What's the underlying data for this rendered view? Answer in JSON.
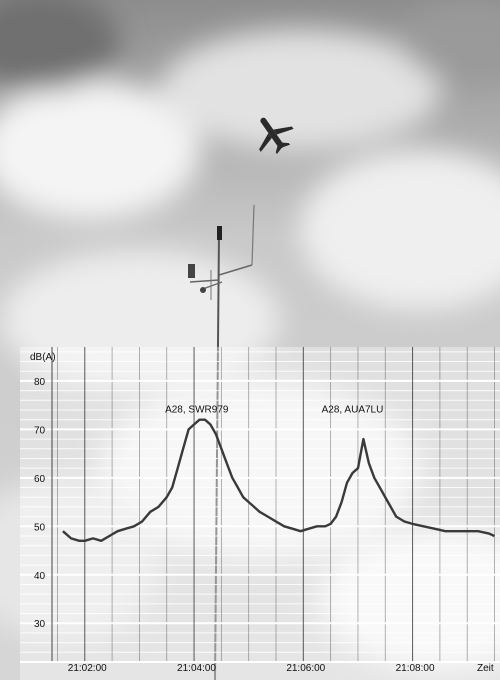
{
  "chart_data": {
    "type": "line",
    "title": "",
    "ylabel": "dB(A)",
    "xlabel": "Zeit",
    "ylim": [
      22,
      87
    ],
    "y_ticks": [
      30,
      40,
      50,
      60,
      70,
      80
    ],
    "x_unit": "minutes",
    "xlim": [
      1261.4,
      1269.6
    ],
    "x_ticks": [
      {
        "value": 1262,
        "label": "21:02:00"
      },
      {
        "value": 1264,
        "label": "21:04:00"
      },
      {
        "value": 1266,
        "label": "21:06:00"
      },
      {
        "value": 1268,
        "label": "21:08:00"
      }
    ],
    "grid": true,
    "background": "photo of sky with aircraft overhead and measurement mast",
    "series": [
      {
        "name": "",
        "color": "#3a3a3a",
        "x": [
          1261.6,
          1261.75,
          1261.9,
          1262.0,
          1262.15,
          1262.3,
          1262.45,
          1262.6,
          1262.75,
          1262.9,
          1263.05,
          1263.2,
          1263.35,
          1263.5,
          1263.6,
          1263.7,
          1263.8,
          1263.9,
          1264.0,
          1264.1,
          1264.2,
          1264.3,
          1264.4,
          1264.5,
          1264.6,
          1264.7,
          1264.8,
          1264.9,
          1265.0,
          1265.1,
          1265.2,
          1265.35,
          1265.5,
          1265.65,
          1265.8,
          1265.95,
          1266.1,
          1266.25,
          1266.4,
          1266.5,
          1266.6,
          1266.7,
          1266.8,
          1266.9,
          1267.0,
          1267.1,
          1267.2,
          1267.3,
          1267.4,
          1267.55,
          1267.7,
          1267.85,
          1268.0,
          1268.2,
          1268.4,
          1268.6,
          1268.8,
          1269.0,
          1269.2,
          1269.4,
          1269.5
        ],
        "y": [
          49,
          47.5,
          47,
          47,
          47.5,
          47,
          48,
          49,
          49.5,
          50,
          51,
          53,
          54,
          56,
          58,
          62,
          66,
          70,
          71,
          72,
          72,
          71,
          69,
          66,
          63,
          60,
          58,
          56,
          55,
          54,
          53,
          52,
          51,
          50,
          49.5,
          49,
          49.5,
          50,
          50,
          50.5,
          52,
          55,
          59,
          61,
          62,
          68,
          63,
          60,
          58,
          55,
          52,
          51,
          50.5,
          50,
          49.5,
          49,
          49,
          49,
          49,
          48.5,
          48
        ]
      }
    ],
    "annotations": [
      {
        "text": "A28, SWR979",
        "x": 1264.05,
        "y": 73.5
      },
      {
        "text": "A28, AUA7LU",
        "x": 1266.9,
        "y": 73.5
      }
    ]
  }
}
